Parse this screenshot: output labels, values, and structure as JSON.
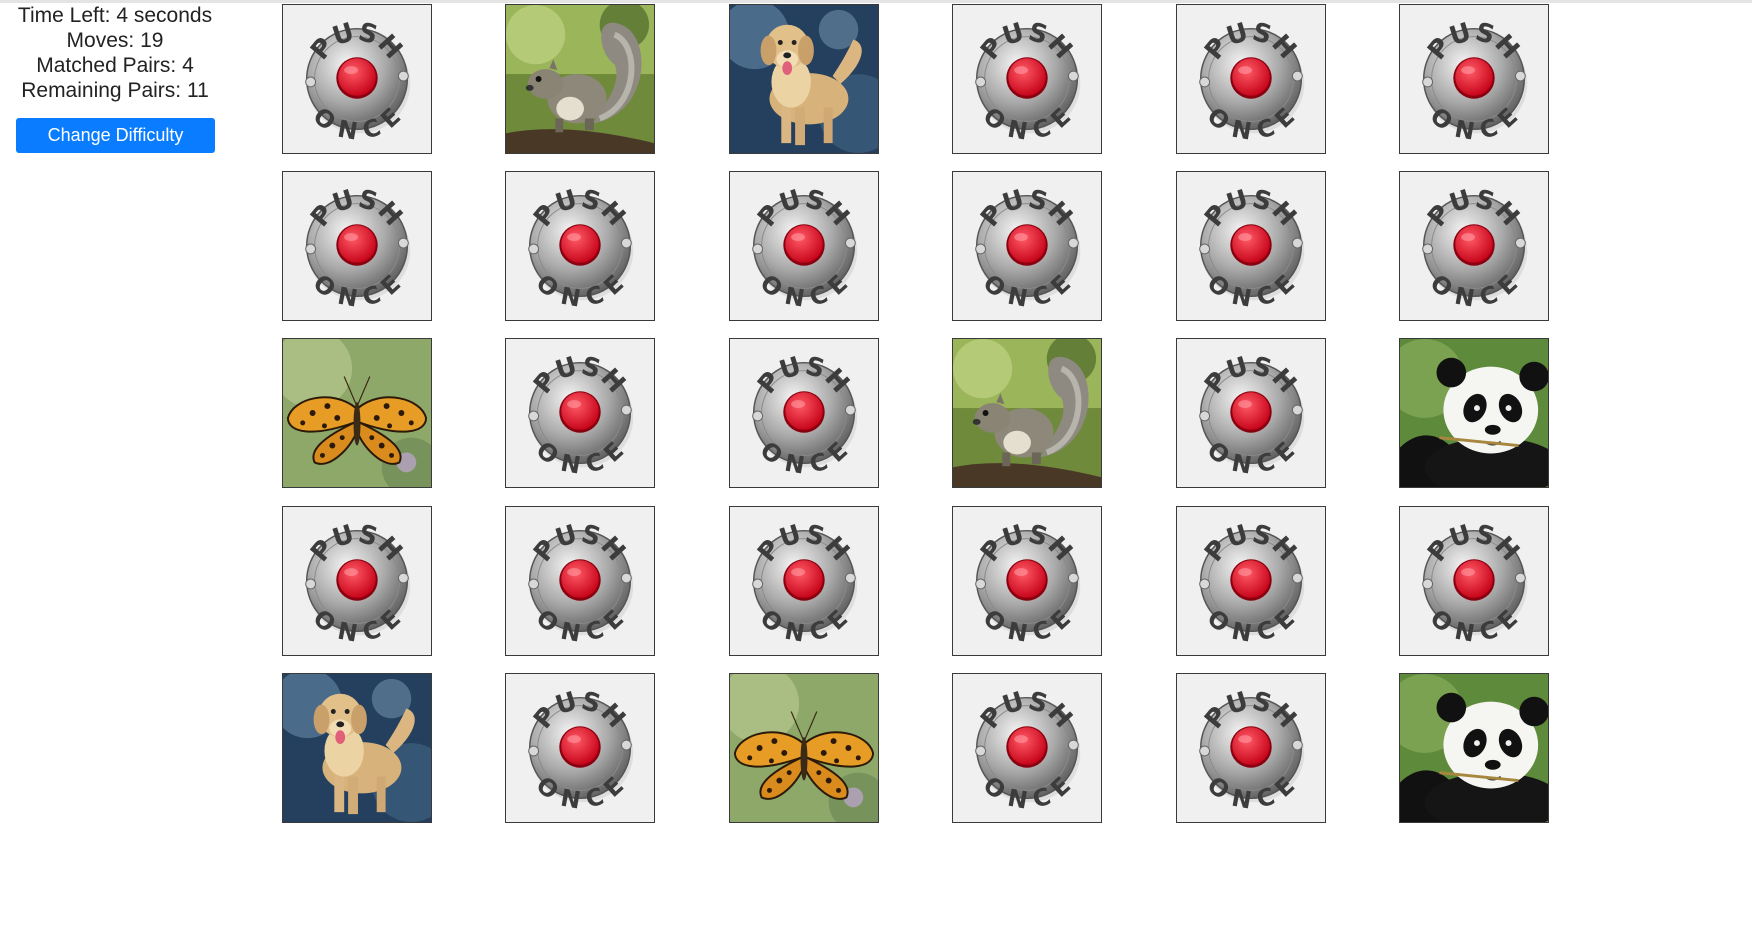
{
  "stats": {
    "time_left": "Time Left: 4 seconds",
    "moves": "Moves: 19",
    "matched_pairs": "Matched Pairs: 4",
    "remaining_pairs": "Remaining Pairs: 11"
  },
  "controls": {
    "change_difficulty_label": "Change Difficulty",
    "button_color": "#0a7cff"
  },
  "card_back": {
    "icon": "push-once-button-icon",
    "top_text": "PUSH",
    "bottom_text": "ONCE",
    "button_color": "#e3172b"
  },
  "board": {
    "rows": 5,
    "cols": 6,
    "cards": [
      {
        "face": "back"
      },
      {
        "face": "squirrel"
      },
      {
        "face": "dog"
      },
      {
        "face": "back"
      },
      {
        "face": "back"
      },
      {
        "face": "back"
      },
      {
        "face": "back"
      },
      {
        "face": "back"
      },
      {
        "face": "back"
      },
      {
        "face": "back"
      },
      {
        "face": "back"
      },
      {
        "face": "back"
      },
      {
        "face": "butterfly"
      },
      {
        "face": "back"
      },
      {
        "face": "back"
      },
      {
        "face": "squirrel"
      },
      {
        "face": "back"
      },
      {
        "face": "panda"
      },
      {
        "face": "back"
      },
      {
        "face": "back"
      },
      {
        "face": "back"
      },
      {
        "face": "back"
      },
      {
        "face": "back"
      },
      {
        "face": "back"
      },
      {
        "face": "dog"
      },
      {
        "face": "back"
      },
      {
        "face": "butterfly"
      },
      {
        "face": "back"
      },
      {
        "face": "back"
      },
      {
        "face": "panda"
      }
    ]
  }
}
